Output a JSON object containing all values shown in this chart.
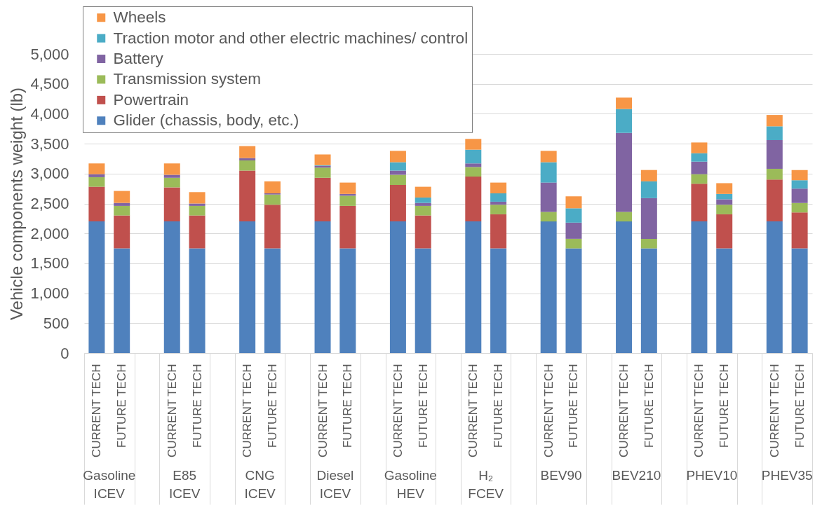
{
  "chart_data": {
    "type": "bar",
    "stacked": true,
    "ylabel": "Vehicle components weight (lb)",
    "categories": [
      "CURRENT TECH",
      "FUTURE TECH",
      "CURRENT TECH",
      "FUTURE TECH",
      "CURRENT TECH",
      "FUTURE TECH",
      "CURRENT TECH",
      "FUTURE TECH",
      "CURRENT TECH",
      "FUTURE TECH",
      "CURRENT TECH",
      "FUTURE TECH",
      "CURRENT TECH",
      "FUTURE TECH",
      "CURRENT TECH",
      "FUTURE TECH",
      "CURRENT TECH",
      "FUTURE TECH",
      "CURRENT TECH",
      "FUTURE TECH"
    ],
    "annotations": [
      "Gasoline\nICEV",
      "E85\nICEV",
      "CNG\nICEV",
      "Diesel\nICEV",
      "Gasoline\nHEV",
      "H₂\nFCEV",
      "BEV90",
      "BEV210",
      "PHEV10",
      "PHEV35"
    ],
    "series": [
      {
        "name": "Glider (chassis, body, etc.)",
        "color": "#4f81bd",
        "values": [
          2200,
          1750,
          2200,
          1750,
          2200,
          1750,
          2200,
          1750,
          2200,
          1750,
          2200,
          1750,
          2200,
          1750,
          2200,
          1750,
          2200,
          1750,
          2200,
          1750
        ]
      },
      {
        "name": "Powertrain",
        "color": "#c0504d",
        "values": [
          580,
          550,
          570,
          550,
          850,
          730,
          730,
          710,
          610,
          550,
          750,
          570,
          0,
          0,
          0,
          0,
          630,
          570,
          700,
          600
        ]
      },
      {
        "name": "Transmission system",
        "color": "#9bbb59",
        "values": [
          160,
          160,
          160,
          160,
          170,
          170,
          170,
          170,
          170,
          160,
          160,
          160,
          160,
          160,
          160,
          160,
          160,
          160,
          180,
          160
        ]
      },
      {
        "name": "Battery",
        "color": "#8064a2",
        "values": [
          50,
          50,
          50,
          40,
          40,
          20,
          30,
          30,
          70,
          50,
          60,
          50,
          490,
          270,
          1320,
          680,
          210,
          90,
          480,
          240
        ]
      },
      {
        "name": "Traction motor and other electric machines/ control",
        "color": "#4bacc6",
        "values": [
          0,
          0,
          0,
          0,
          0,
          0,
          10,
          0,
          140,
          90,
          230,
          140,
          340,
          240,
          400,
          280,
          140,
          90,
          230,
          140
        ]
      },
      {
        "name": "Wheels",
        "color": "#f79646",
        "values": [
          180,
          200,
          190,
          190,
          200,
          200,
          180,
          190,
          190,
          180,
          180,
          180,
          190,
          200,
          190,
          190,
          180,
          180,
          190,
          170
        ]
      }
    ],
    "ylim": [
      0,
      5000
    ],
    "yticks": [
      0,
      500,
      {
        "value": 1000,
        "label": "1,000"
      },
      {
        "value": 1500,
        "label": "1,500"
      },
      {
        "value": 2000,
        "label": "2,000"
      },
      {
        "value": 2500,
        "label": "2,500"
      },
      {
        "value": 3000,
        "label": "3,000"
      },
      {
        "value": 3500,
        "label": "3,500"
      },
      {
        "value": 4000,
        "label": "4,000"
      },
      {
        "value": 4500,
        "label": "4,500"
      },
      {
        "value": 5000,
        "label": "5,000"
      }
    ],
    "grid": "y",
    "legend": "top left"
  }
}
